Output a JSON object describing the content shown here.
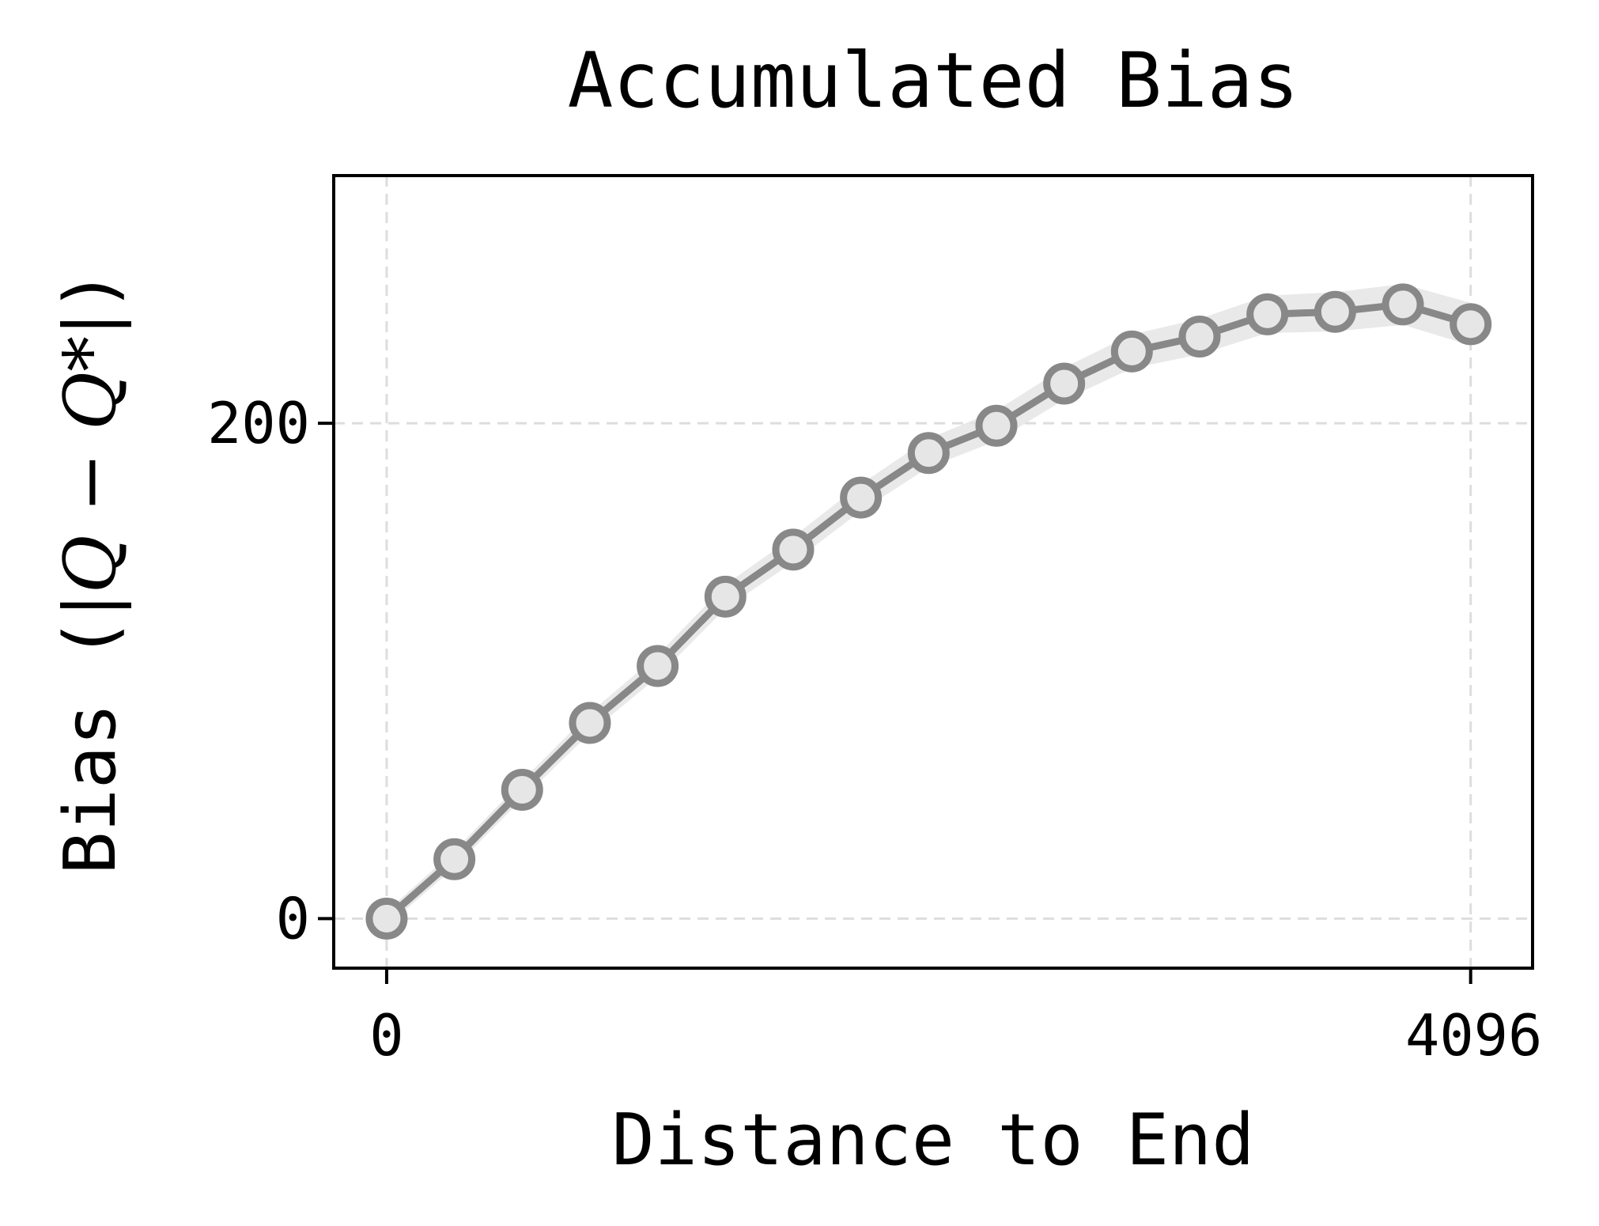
{
  "chart_data": {
    "type": "line",
    "title": "Accumulated Bias",
    "xlabel": "Distance to End",
    "ylabel_text": "Bias (",
    "ylabel_math": "|Q − Q*|",
    "ylabel_close": ")",
    "xlim": [
      -200,
      4330
    ],
    "ylim": [
      -20,
      300
    ],
    "xticks": [
      0,
      4096
    ],
    "xtick_labels": [
      "0",
      "4096"
    ],
    "yticks": [
      0,
      200
    ],
    "ytick_labels": [
      "0",
      "200"
    ],
    "grid": true,
    "series": [
      {
        "color": "#888888",
        "marker_fill": "#e6e6e6",
        "x": [
          0,
          256,
          512,
          768,
          1024,
          1280,
          1536,
          1792,
          2048,
          2304,
          2560,
          2816,
          3072,
          3328,
          3584,
          3840,
          4096
        ],
        "y": [
          0,
          24,
          52,
          79,
          102,
          130,
          149,
          170,
          188,
          199,
          216,
          229,
          235,
          244,
          245,
          248,
          240
        ]
      }
    ]
  }
}
